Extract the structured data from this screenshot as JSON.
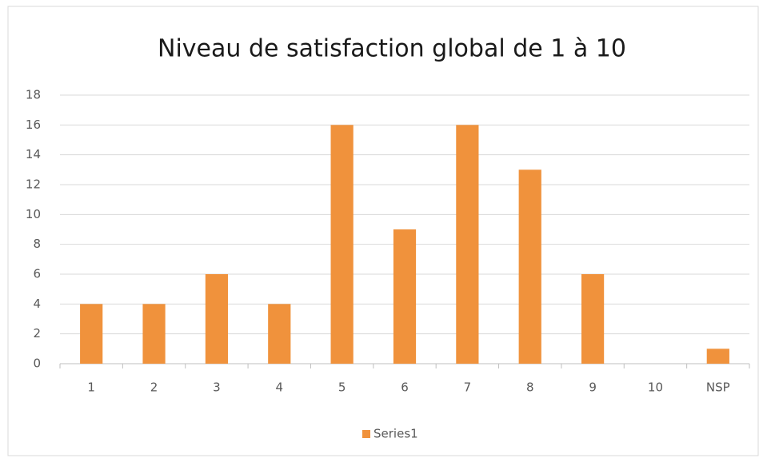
{
  "chart_data": {
    "type": "bar",
    "title": "Niveau de satisfaction global de 1 à 10",
    "categories": [
      "1",
      "2",
      "3",
      "4",
      "5",
      "6",
      "7",
      "8",
      "9",
      "10",
      "NSP"
    ],
    "series": [
      {
        "name": "Series1",
        "color": "#f0923c",
        "values": [
          4,
          4,
          6,
          4,
          16,
          9,
          16,
          13,
          6,
          0,
          1
        ]
      }
    ],
    "ylim": [
      0,
      18
    ],
    "yticks": [
      0,
      2,
      4,
      6,
      8,
      10,
      12,
      14,
      16,
      18
    ],
    "grid": true,
    "legend": "bottom"
  }
}
